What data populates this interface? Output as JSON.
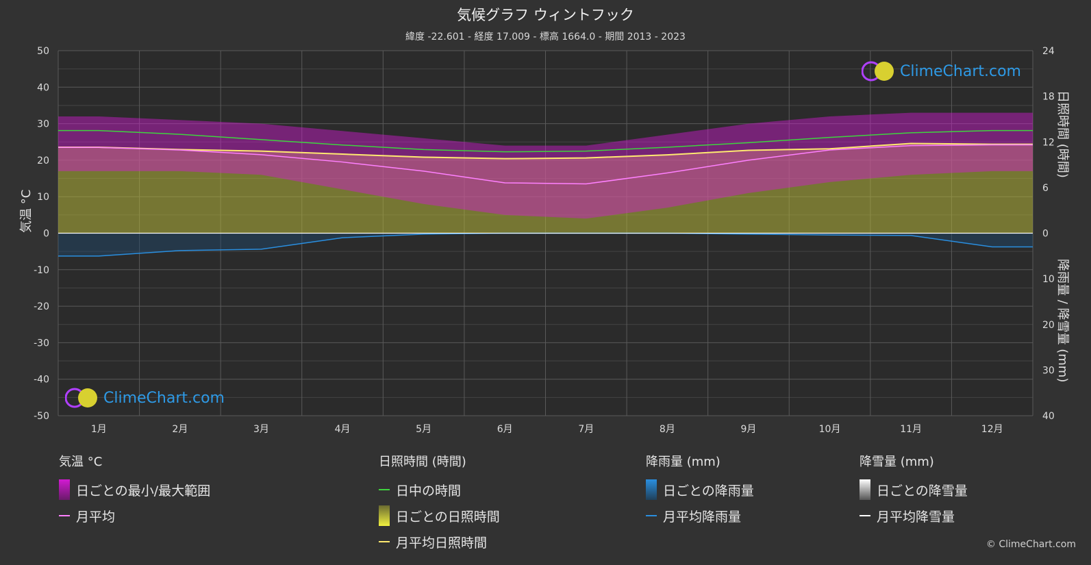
{
  "header": {
    "title": "気候グラフ ウィントフック",
    "subtitle": "緯度 -22.601 - 経度 17.009 - 標高 1664.0 - 期間 2013 - 2023"
  },
  "axes": {
    "left_label": "気温 °C",
    "right_top_label": "日照時間 (時間)",
    "right_bottom_label": "降雨量 / 降雪量 (mm)",
    "left_ticks": [
      "50",
      "40",
      "30",
      "20",
      "10",
      "0",
      "-10",
      "-20",
      "-30",
      "-40",
      "-50"
    ],
    "right_top_ticks": [
      "24",
      "18",
      "12",
      "6",
      "0"
    ],
    "right_bottom_ticks": [
      "10",
      "20",
      "30",
      "40"
    ]
  },
  "logo": {
    "text": "ClimeChart.com"
  },
  "legend": {
    "temperature": {
      "heading": "気温 °C",
      "range": "日ごとの最小/最大範囲",
      "mean": "月平均"
    },
    "sunshine": {
      "heading": "日照時間 (時間)",
      "daylight": "日中の時間",
      "daily": "日ごとの日照時間",
      "mean": "月平均日照時間"
    },
    "rain": {
      "heading": "降雨量 (mm)",
      "daily": "日ごとの降雨量",
      "mean": "月平均降雨量"
    },
    "snow": {
      "heading": "降雪量 (mm)",
      "daily": "日ごとの降雪量",
      "mean": "月平均降雪量"
    }
  },
  "copyright": "© ClimeChart.com",
  "colors": {
    "background": "#323232",
    "temp_range": "#d21ad2",
    "temp_mean": "#ff80ff",
    "daylight": "#3fd43f",
    "sunshine_fill": "#b5b53a",
    "sunshine_mean": "#ffea70",
    "rain": "#2a8fe0",
    "snow": "#ffffff"
  },
  "chart_data": {
    "type": "line",
    "categories": [
      "1月",
      "2月",
      "3月",
      "4月",
      "5月",
      "6月",
      "7月",
      "8月",
      "9月",
      "10月",
      "11月",
      "12月"
    ],
    "temp_axis": {
      "ylim": [
        -50,
        50
      ]
    },
    "sun_axis": {
      "ylim": [
        0,
        24
      ]
    },
    "precip_axis": {
      "ylim": [
        0,
        40
      ]
    },
    "series": [
      {
        "name": "日中の時間",
        "axis": "sun",
        "values": [
          13.5,
          13.0,
          12.3,
          11.6,
          11.0,
          10.7,
          10.8,
          11.3,
          11.9,
          12.6,
          13.2,
          13.5
        ]
      },
      {
        "name": "月平均日照時間",
        "axis": "sun",
        "values": [
          11.3,
          11.0,
          10.8,
          10.4,
          10.0,
          9.8,
          9.9,
          10.3,
          10.9,
          11.1,
          11.8,
          11.7
        ]
      },
      {
        "name": "月平均",
        "axis": "temp",
        "values": [
          23.5,
          22.8,
          21.5,
          19.5,
          17.0,
          13.8,
          13.5,
          16.5,
          20.0,
          22.8,
          24.0,
          24.2
        ]
      },
      {
        "name": "日ごとの最小/最大範囲 (max)",
        "axis": "temp",
        "values": [
          32,
          31,
          30,
          28,
          26,
          24,
          24,
          27,
          30,
          32,
          33,
          33
        ]
      },
      {
        "name": "日ごとの最小/最大範囲 (min)",
        "axis": "temp",
        "values": [
          17,
          17,
          16,
          12,
          8,
          5,
          4,
          7,
          11,
          14,
          16,
          17
        ]
      },
      {
        "name": "月平均降雨量",
        "axis": "precip",
        "values": [
          5.0,
          3.8,
          3.5,
          1.0,
          0.2,
          0.0,
          0.0,
          0.0,
          0.2,
          0.4,
          0.5,
          3.0
        ]
      },
      {
        "name": "月平均降雪量",
        "axis": "precip",
        "values": [
          0,
          0,
          0,
          0,
          0,
          0,
          0,
          0,
          0,
          0,
          0,
          0
        ]
      }
    ]
  }
}
